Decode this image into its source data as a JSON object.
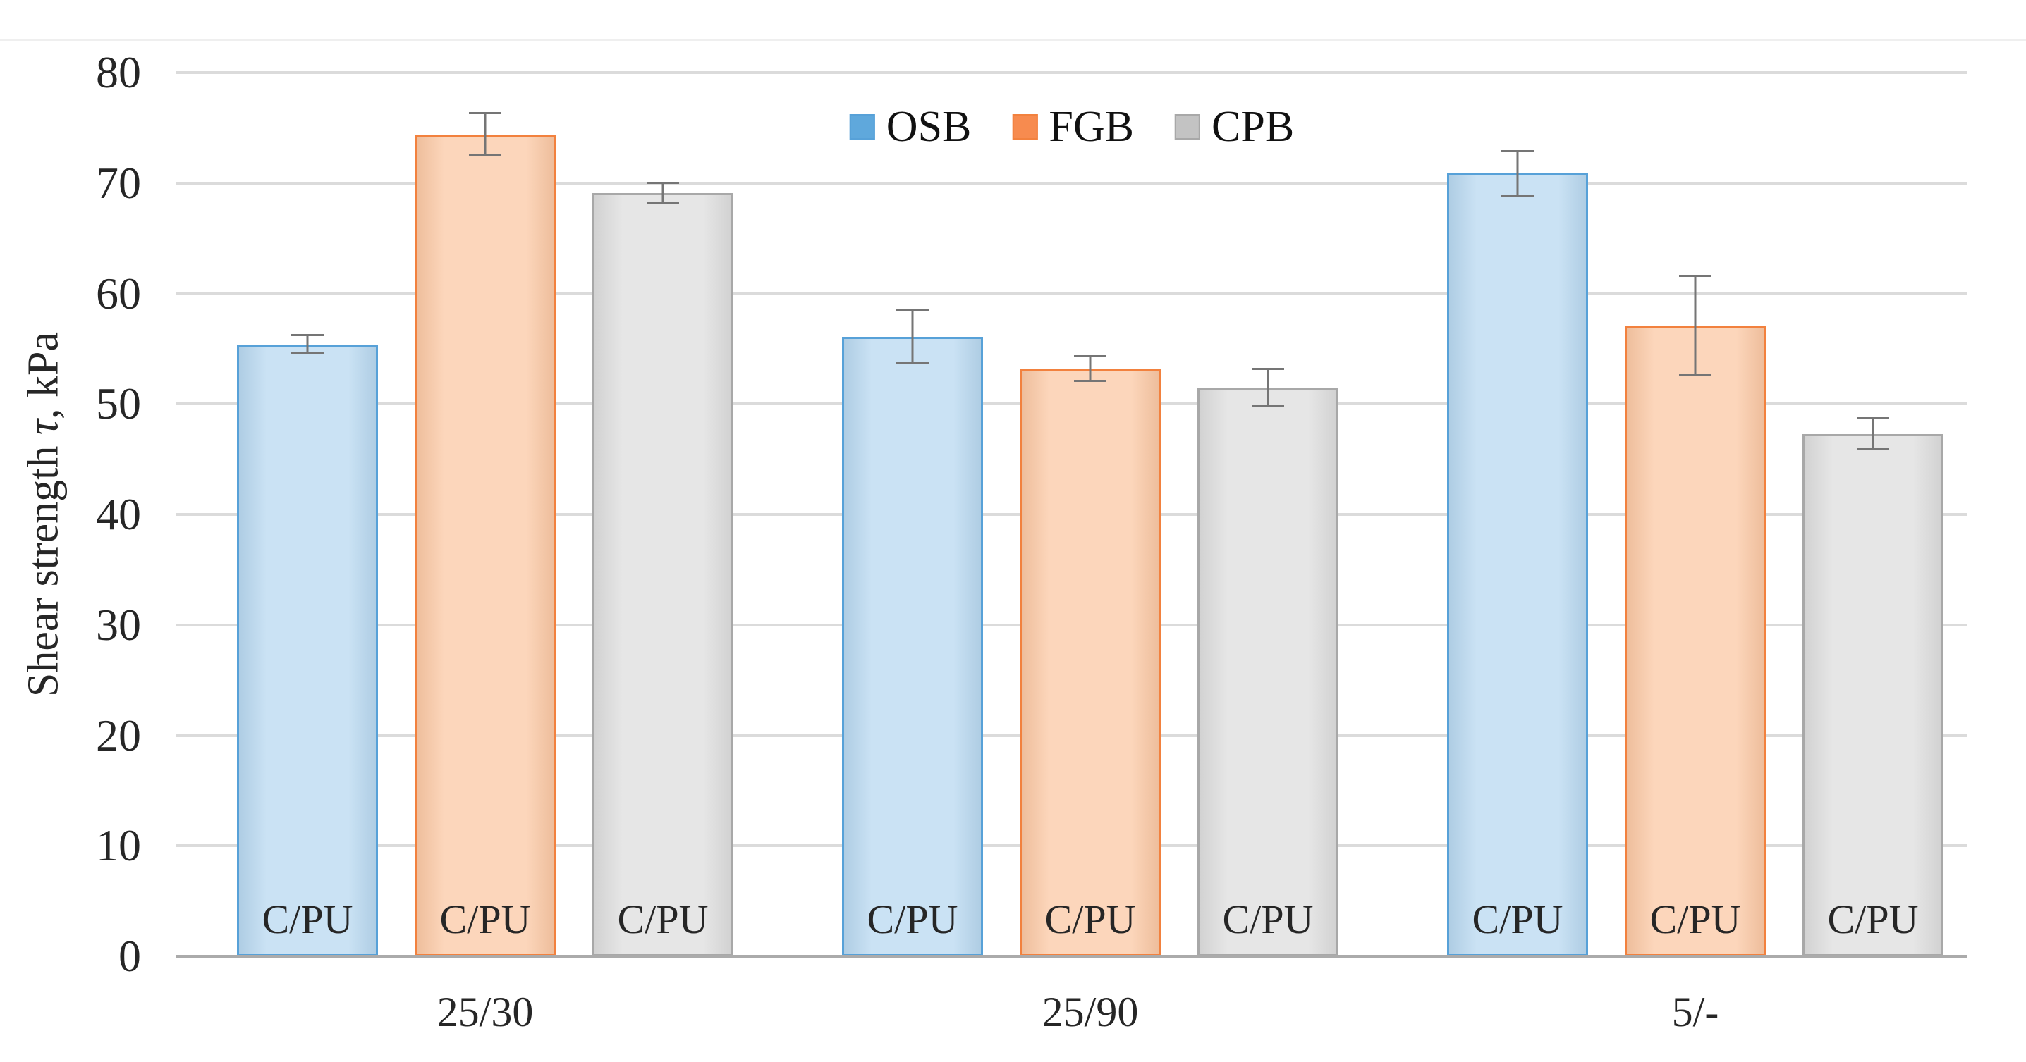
{
  "chart_data": {
    "type": "bar",
    "title": "",
    "xlabel": "",
    "ylabel": "Shear strength τ, kPa",
    "ylabel_parts": {
      "prefix": "Shear strength ",
      "symbol": "τ",
      "suffix": ", kPa"
    },
    "ylim": [
      0,
      80
    ],
    "ytick_step": 10,
    "yticks": [
      0,
      10,
      20,
      30,
      40,
      50,
      60,
      70,
      80
    ],
    "grid": true,
    "legend_position": "top-center",
    "categories": [
      "25/30",
      "25/90",
      "5/-"
    ],
    "bar_point_label": "C/PU",
    "series": [
      {
        "name": "OSB",
        "fill": "#B8D8F0",
        "border": "#57A1D8",
        "swatch": "#5FA8DC",
        "values": [
          55.4,
          56.1,
          70.9
        ],
        "errors": [
          0.9,
          2.5,
          2.1
        ]
      },
      {
        "name": "FGB",
        "fill": "#FBC8A4",
        "border": "#F2813E",
        "swatch": "#F78B4F",
        "values": [
          74.4,
          53.2,
          57.1
        ],
        "errors": [
          2.0,
          1.2,
          4.6
        ]
      },
      {
        "name": "CPB",
        "fill": "#DDDDDD",
        "border": "#A8A8A8",
        "swatch": "#C3C3C3",
        "values": [
          69.1,
          51.5,
          47.3
        ],
        "errors": [
          1.0,
          1.8,
          1.5
        ]
      }
    ],
    "colors": {
      "gridline": "#DBDBDB",
      "axis_line": "#ABABAB",
      "error_bar": "#757575",
      "text": "#262626"
    }
  }
}
